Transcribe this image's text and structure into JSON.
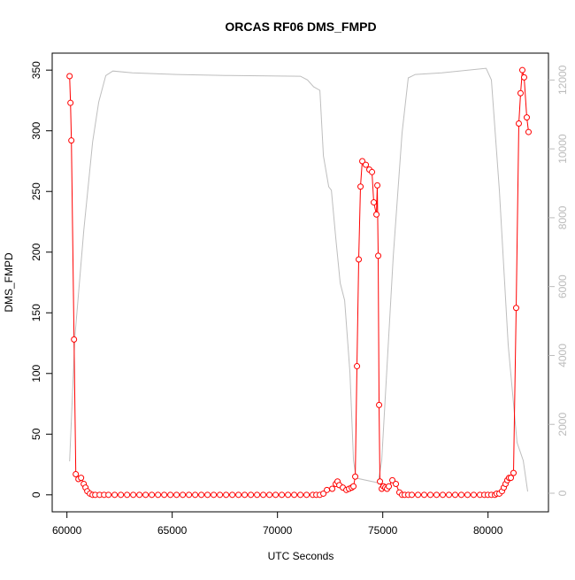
{
  "chart_data": {
    "type": "line",
    "title": "ORCAS RF06 DMS_FMPD",
    "xlabel": "UTC Seconds",
    "ylabel": "DMS_FMPD",
    "xlim": [
      59300,
      82870
    ],
    "ylim": [
      -14,
      364
    ],
    "y2lim": [
      -540,
      12780
    ],
    "xticks": [
      60000,
      65000,
      70000,
      75000,
      80000
    ],
    "yticks": [
      0,
      50,
      100,
      150,
      200,
      250,
      300,
      350
    ],
    "y2ticks": [
      0,
      2000,
      4000,
      6000,
      8000,
      10000,
      12000
    ],
    "y2tick_color": "#bbbbbb",
    "series": [
      {
        "color": "#bebebe",
        "axis": "y2",
        "markers": false,
        "x": [
          60126,
          60378,
          60798,
          61218,
          61512,
          61848,
          62184,
          63108,
          65208,
          67728,
          71088,
          71424,
          71718,
          72012,
          72180,
          72432,
          72558,
          72768,
          72978,
          73188,
          73440,
          73608,
          73734,
          74784,
          74952,
          75498,
          75918,
          76212,
          76548,
          77808,
          79908,
          80160,
          80538,
          80958,
          81378,
          81672,
          81882
        ],
        "values": [
          925,
          4550,
          7630,
          10200,
          11360,
          12130,
          12260,
          12210,
          12160,
          12130,
          12110,
          12000,
          11800,
          11700,
          9800,
          8900,
          8800,
          7400,
          6100,
          5600,
          3500,
          950,
          440,
          300,
          950,
          6860,
          10460,
          12060,
          12160,
          12210,
          12340,
          12000,
          8800,
          4300,
          1470,
          950,
          50
        ]
      },
      {
        "color": "#ff0000",
        "axis": "y",
        "markers": true,
        "x": [
          60126,
          60168,
          60210,
          60336,
          60420,
          60546,
          60672,
          60798,
          60882,
          60966,
          61092,
          61218,
          61344,
          61554,
          61764,
          61974,
          62268,
          62562,
          62856,
          63150,
          63444,
          63738,
          64032,
          64326,
          64620,
          64914,
          65208,
          65502,
          65796,
          66090,
          66384,
          66678,
          66972,
          67266,
          67560,
          67854,
          68148,
          68442,
          68736,
          69030,
          69324,
          69618,
          69912,
          70206,
          70500,
          70794,
          71088,
          71382,
          71676,
          71844,
          72012,
          72180,
          72348,
          72600,
          72768,
          72852,
          72936,
          73104,
          73272,
          73398,
          73524,
          73608,
          73692,
          73776,
          73860,
          73944,
          74028,
          74196,
          74364,
          74490,
          74574,
          74700,
          74742,
          74784,
          74826,
          74868,
          74952,
          75036,
          75120,
          75204,
          75288,
          75456,
          75624,
          75792,
          75918,
          76044,
          76212,
          76380,
          76674,
          76968,
          77262,
          77556,
          77850,
          78144,
          78438,
          78732,
          79026,
          79320,
          79614,
          79824,
          79992,
          80160,
          80328,
          80412,
          80538,
          80664,
          80748,
          80832,
          80916,
          81000,
          81084,
          81210,
          81336,
          81462,
          81546,
          81630,
          81714,
          81840,
          81924
        ],
        "values": [
          345,
          323,
          292,
          128,
          17,
          13,
          14,
          9,
          6,
          3,
          1,
          0,
          0,
          0,
          0,
          0,
          0,
          0,
          0,
          0,
          0,
          0,
          0,
          0,
          0,
          0,
          0,
          0,
          0,
          0,
          0,
          0,
          0,
          0,
          0,
          0,
          0,
          0,
          0,
          0,
          0,
          0,
          0,
          0,
          0,
          0,
          0,
          0,
          0,
          0,
          0,
          1,
          4,
          5,
          9,
          11,
          8,
          6,
          4,
          5,
          6,
          7,
          15,
          106,
          194,
          254,
          275,
          272,
          268,
          266,
          241,
          231,
          255,
          197,
          74,
          11,
          5,
          7,
          6,
          5,
          7,
          12,
          9,
          2,
          0,
          0,
          0,
          0,
          0,
          0,
          0,
          0,
          0,
          0,
          0,
          0,
          0,
          0,
          0,
          0,
          0,
          0,
          0,
          1,
          1,
          3,
          6,
          9,
          12,
          14,
          14,
          18,
          154,
          306,
          331,
          350,
          344,
          311,
          299
        ]
      }
    ]
  }
}
